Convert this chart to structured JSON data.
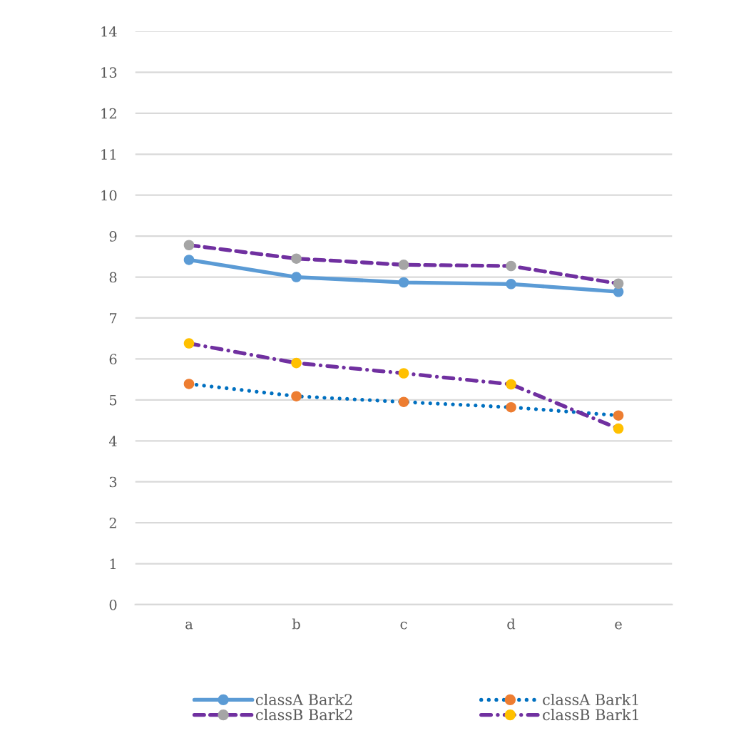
{
  "chart_data": {
    "type": "line",
    "categories": [
      "a",
      "b",
      "c",
      "d",
      "e"
    ],
    "series": [
      {
        "name": "classA Bark2",
        "color": "#5b9bd5",
        "colors": [
          "#5b9bd5",
          "#5b9bd5",
          "#5b9bd5",
          "#5b9bd5",
          "#5b9bd5"
        ],
        "line_style": "solid",
        "marker": "circle",
        "values": [
          8.42,
          8.0,
          7.87,
          7.83,
          7.64
        ]
      },
      {
        "name": "classA Bark1",
        "color": "#0070c0",
        "colors": [
          "#ed7d31",
          "#ed7d31",
          "#ed7d31",
          "#ed7d31",
          "#ed7d31"
        ],
        "line_style": "dotted",
        "marker": "circle",
        "values": [
          5.39,
          5.09,
          4.95,
          4.82,
          4.62
        ]
      },
      {
        "name": "classB Bark2",
        "color": "#7030a0",
        "colors": [
          "#a5a5a5",
          "#a5a5a5",
          "#a5a5a5",
          "#a5a5a5",
          "#a5a5a5"
        ],
        "line_style": "dashed",
        "marker": "circle",
        "values": [
          8.78,
          8.45,
          8.3,
          8.27,
          7.84
        ]
      },
      {
        "name": "classB Bark1",
        "color": "#7030a0",
        "colors": [
          "#ffc000",
          "#ffc000",
          "#ffc000",
          "#ffc000",
          "#ffc000"
        ],
        "line_style": "dashdot",
        "marker": "circle",
        "values": [
          6.38,
          5.9,
          5.65,
          5.38,
          4.3
        ]
      }
    ],
    "ylim": [
      0,
      14
    ],
    "yticks": [
      0,
      1,
      2,
      3,
      4,
      5,
      6,
      7,
      8,
      9,
      10,
      11,
      12,
      13,
      14
    ],
    "grid": "y",
    "legend": "bottom"
  }
}
